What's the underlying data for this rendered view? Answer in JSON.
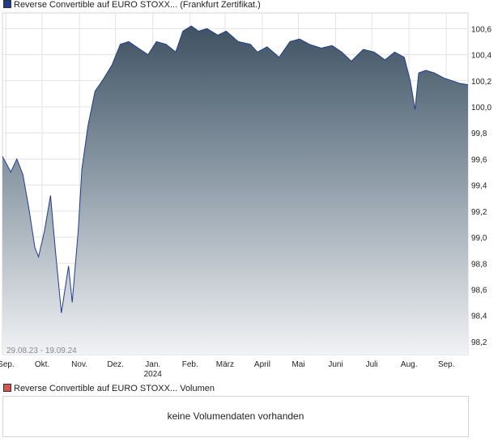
{
  "legend_top": {
    "label": "Reverse Convertible auf EURO STOXX... (Frankfurt Zertifikat.)",
    "color": "#1f3d8f"
  },
  "legend_bottom": {
    "label": "Reverse Convertible auf EURO STOXX... Volumen",
    "color": "#d9534f"
  },
  "volume_message": "keine Volumendaten vorhanden",
  "chart_data": {
    "type": "area",
    "date_range_label": "29.08.23 - 19.09.24",
    "ylim": [
      98.1,
      100.72
    ],
    "y_ticks": [
      {
        "value": 98.2,
        "label": "98,2"
      },
      {
        "value": 98.4,
        "label": "98,4"
      },
      {
        "value": 98.6,
        "label": "98,6"
      },
      {
        "value": 98.8,
        "label": "98,8"
      },
      {
        "value": 99.0,
        "label": "99,0"
      },
      {
        "value": 99.2,
        "label": "99,2"
      },
      {
        "value": 99.4,
        "label": "99,4"
      },
      {
        "value": 99.6,
        "label": "99,6"
      },
      {
        "value": 99.8,
        "label": "99,8"
      },
      {
        "value": 100.0,
        "label": "100,0"
      },
      {
        "value": 100.2,
        "label": "100,2"
      },
      {
        "value": 100.4,
        "label": "100,4"
      },
      {
        "value": 100.6,
        "label": "100,6"
      }
    ],
    "x_range": [
      "2023-08-29",
      "2024-09-19"
    ],
    "x_ticks": [
      {
        "date": "2023-09-01",
        "label": "Sep."
      },
      {
        "date": "2023-10-01",
        "label": "Okt."
      },
      {
        "date": "2023-11-01",
        "label": "Nov."
      },
      {
        "date": "2023-12-01",
        "label": "Dez."
      },
      {
        "date": "2024-01-01",
        "label": "Jan.",
        "sub": "2024"
      },
      {
        "date": "2024-02-01",
        "label": "Feb."
      },
      {
        "date": "2024-03-01",
        "label": "März"
      },
      {
        "date": "2024-04-01",
        "label": "April"
      },
      {
        "date": "2024-05-01",
        "label": "Mai"
      },
      {
        "date": "2024-06-01",
        "label": "Juni"
      },
      {
        "date": "2024-07-01",
        "label": "Juli"
      },
      {
        "date": "2024-08-01",
        "label": "Aug."
      },
      {
        "date": "2024-09-01",
        "label": "Sep."
      }
    ],
    "x": [
      "2023-08-29",
      "2023-09-05",
      "2023-09-10",
      "2023-09-15",
      "2023-09-20",
      "2023-09-25",
      "2023-09-28",
      "2023-10-03",
      "2023-10-08",
      "2023-10-12",
      "2023-10-17",
      "2023-10-23",
      "2023-10-26",
      "2023-10-31",
      "2023-11-03",
      "2023-11-08",
      "2023-11-14",
      "2023-11-20",
      "2023-11-28",
      "2023-12-05",
      "2023-12-12",
      "2023-12-20",
      "2023-12-28",
      "2024-01-04",
      "2024-01-12",
      "2024-01-20",
      "2024-01-26",
      "2024-02-02",
      "2024-02-08",
      "2024-02-15",
      "2024-02-24",
      "2024-03-02",
      "2024-03-12",
      "2024-03-22",
      "2024-03-28",
      "2024-04-05",
      "2024-04-15",
      "2024-04-24",
      "2024-05-02",
      "2024-05-10",
      "2024-05-20",
      "2024-05-29",
      "2024-06-06",
      "2024-06-14",
      "2024-06-24",
      "2024-07-03",
      "2024-07-12",
      "2024-07-20",
      "2024-07-28",
      "2024-08-02",
      "2024-08-06",
      "2024-08-09",
      "2024-08-15",
      "2024-08-22",
      "2024-08-30",
      "2024-09-06",
      "2024-09-12",
      "2024-09-19"
    ],
    "values": [
      99.62,
      99.5,
      99.6,
      99.48,
      99.22,
      98.92,
      98.85,
      99.05,
      99.32,
      98.9,
      98.42,
      98.78,
      98.5,
      99.05,
      99.52,
      99.85,
      100.12,
      100.2,
      100.32,
      100.48,
      100.5,
      100.45,
      100.4,
      100.5,
      100.48,
      100.42,
      100.58,
      100.62,
      100.58,
      100.6,
      100.55,
      100.58,
      100.5,
      100.48,
      100.42,
      100.46,
      100.38,
      100.5,
      100.52,
      100.48,
      100.45,
      100.47,
      100.42,
      100.35,
      100.44,
      100.42,
      100.36,
      100.42,
      100.38,
      100.2,
      99.98,
      100.26,
      100.28,
      100.26,
      100.22,
      100.2,
      100.18,
      100.17
    ]
  }
}
